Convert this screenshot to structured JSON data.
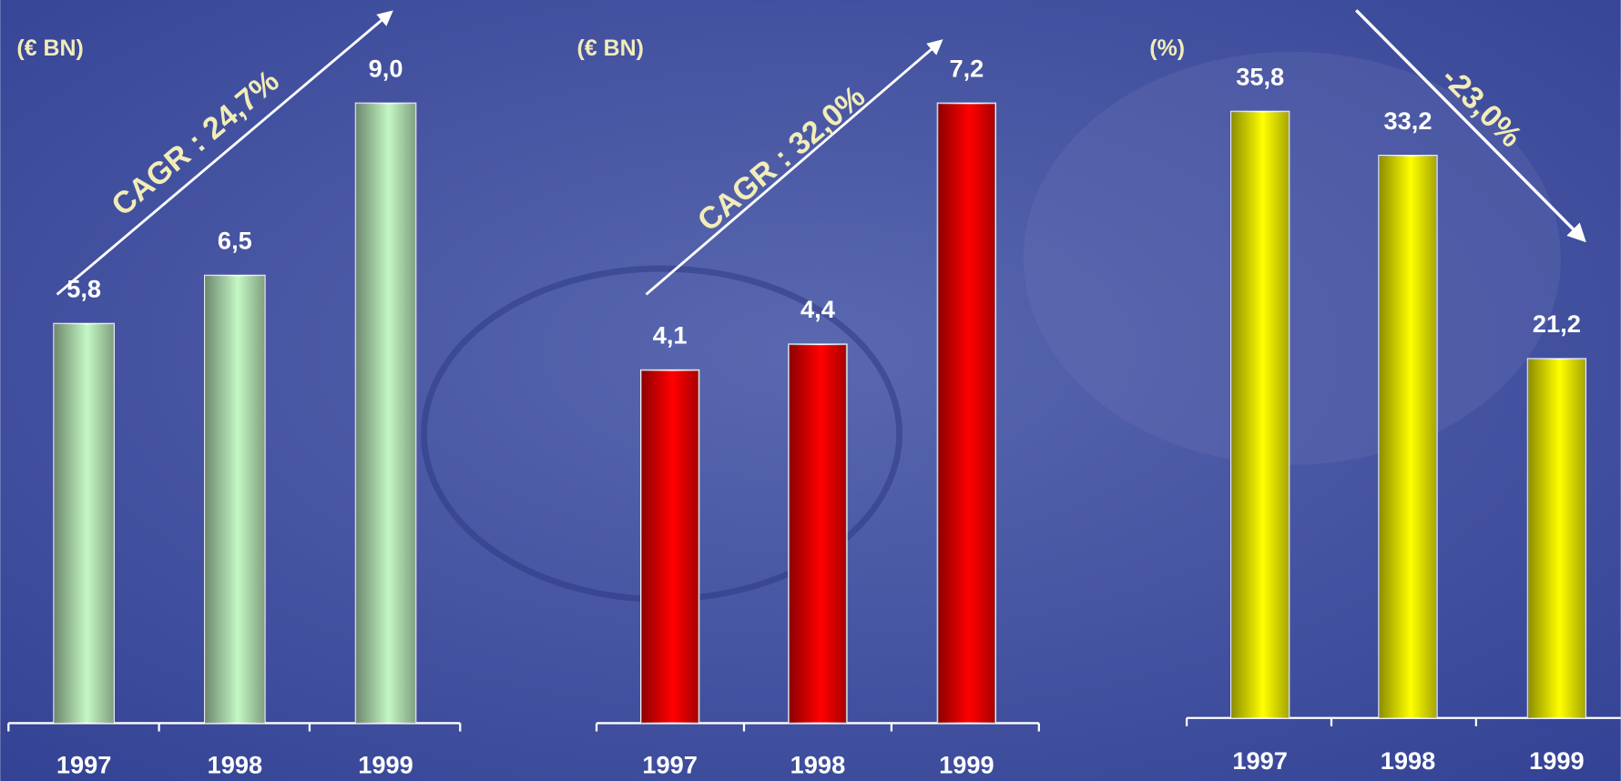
{
  "chart_data": [
    {
      "type": "bar",
      "y_label": "(€ BN)",
      "categories": [
        "1997",
        "1998",
        "1999"
      ],
      "values": [
        5.8,
        6.5,
        9.0
      ],
      "value_labels": [
        "5,8",
        "6,5",
        "9,0"
      ],
      "color": "#c4f7c4",
      "annotation": "CAGR : 24,7%"
    },
    {
      "type": "bar",
      "y_label": "(€ BN)",
      "categories": [
        "1997",
        "1998",
        "1999"
      ],
      "values": [
        4.1,
        4.4,
        7.2
      ],
      "value_labels": [
        "4,1",
        "4,4",
        "7,2"
      ],
      "color": "#ff0000",
      "annotation": "CAGR : 32,0%"
    },
    {
      "type": "bar",
      "y_label": "(%)",
      "categories": [
        "1997",
        "1998",
        "1999"
      ],
      "values": [
        35.8,
        33.2,
        21.2
      ],
      "value_labels": [
        "35,8",
        "33,2",
        "21,2"
      ],
      "color": "#ffff00",
      "annotation": "-23,0%"
    }
  ]
}
